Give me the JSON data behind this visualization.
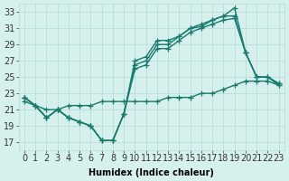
{
  "xlabel": "Humidex (Indice chaleur)",
  "background_color": "#d6f0ee",
  "grid_color": "#b8ddd8",
  "line_color": "#1a7a6e",
  "xlim": [
    -0.5,
    23.5
  ],
  "ylim": [
    16,
    34
  ],
  "xticks": [
    0,
    1,
    2,
    3,
    4,
    5,
    6,
    7,
    8,
    9,
    10,
    11,
    12,
    13,
    14,
    15,
    16,
    17,
    18,
    19,
    20,
    21,
    22,
    23
  ],
  "yticks": [
    17,
    19,
    21,
    23,
    25,
    27,
    29,
    31,
    33
  ],
  "series": [
    [
      22.5,
      21.5,
      20.0,
      21.0,
      20.0,
      19.5,
      19.0,
      17.2,
      17.2,
      20.5,
      27.0,
      27.5,
      29.5,
      29.5,
      30.0,
      31.0,
      31.2,
      32.0,
      32.5,
      33.5,
      28.0,
      25.0,
      25.0,
      24.0
    ],
    [
      22.5,
      21.5,
      20.0,
      21.0,
      20.0,
      19.5,
      19.0,
      17.2,
      17.2,
      20.5,
      26.5,
      27.0,
      29.0,
      29.0,
      30.0,
      31.0,
      31.5,
      32.0,
      32.5,
      32.5,
      28.0,
      25.0,
      25.0,
      24.2
    ],
    [
      22.5,
      21.5,
      20.0,
      21.0,
      20.0,
      19.5,
      19.0,
      17.2,
      17.2,
      20.5,
      26.0,
      26.5,
      28.5,
      28.5,
      29.5,
      30.5,
      31.0,
      31.5,
      32.0,
      32.2,
      28.0,
      25.0,
      25.0,
      24.2
    ],
    [
      22.0,
      21.5,
      21.0,
      21.0,
      21.5,
      21.5,
      21.5,
      22.0,
      22.0,
      22.0,
      22.0,
      22.0,
      22.0,
      22.5,
      22.5,
      22.5,
      23.0,
      23.0,
      23.5,
      24.0,
      24.5,
      24.5,
      24.5,
      24.0
    ]
  ],
  "marker": "+",
  "marker_size": 4,
  "line_width": 1.0,
  "font_size": 7
}
